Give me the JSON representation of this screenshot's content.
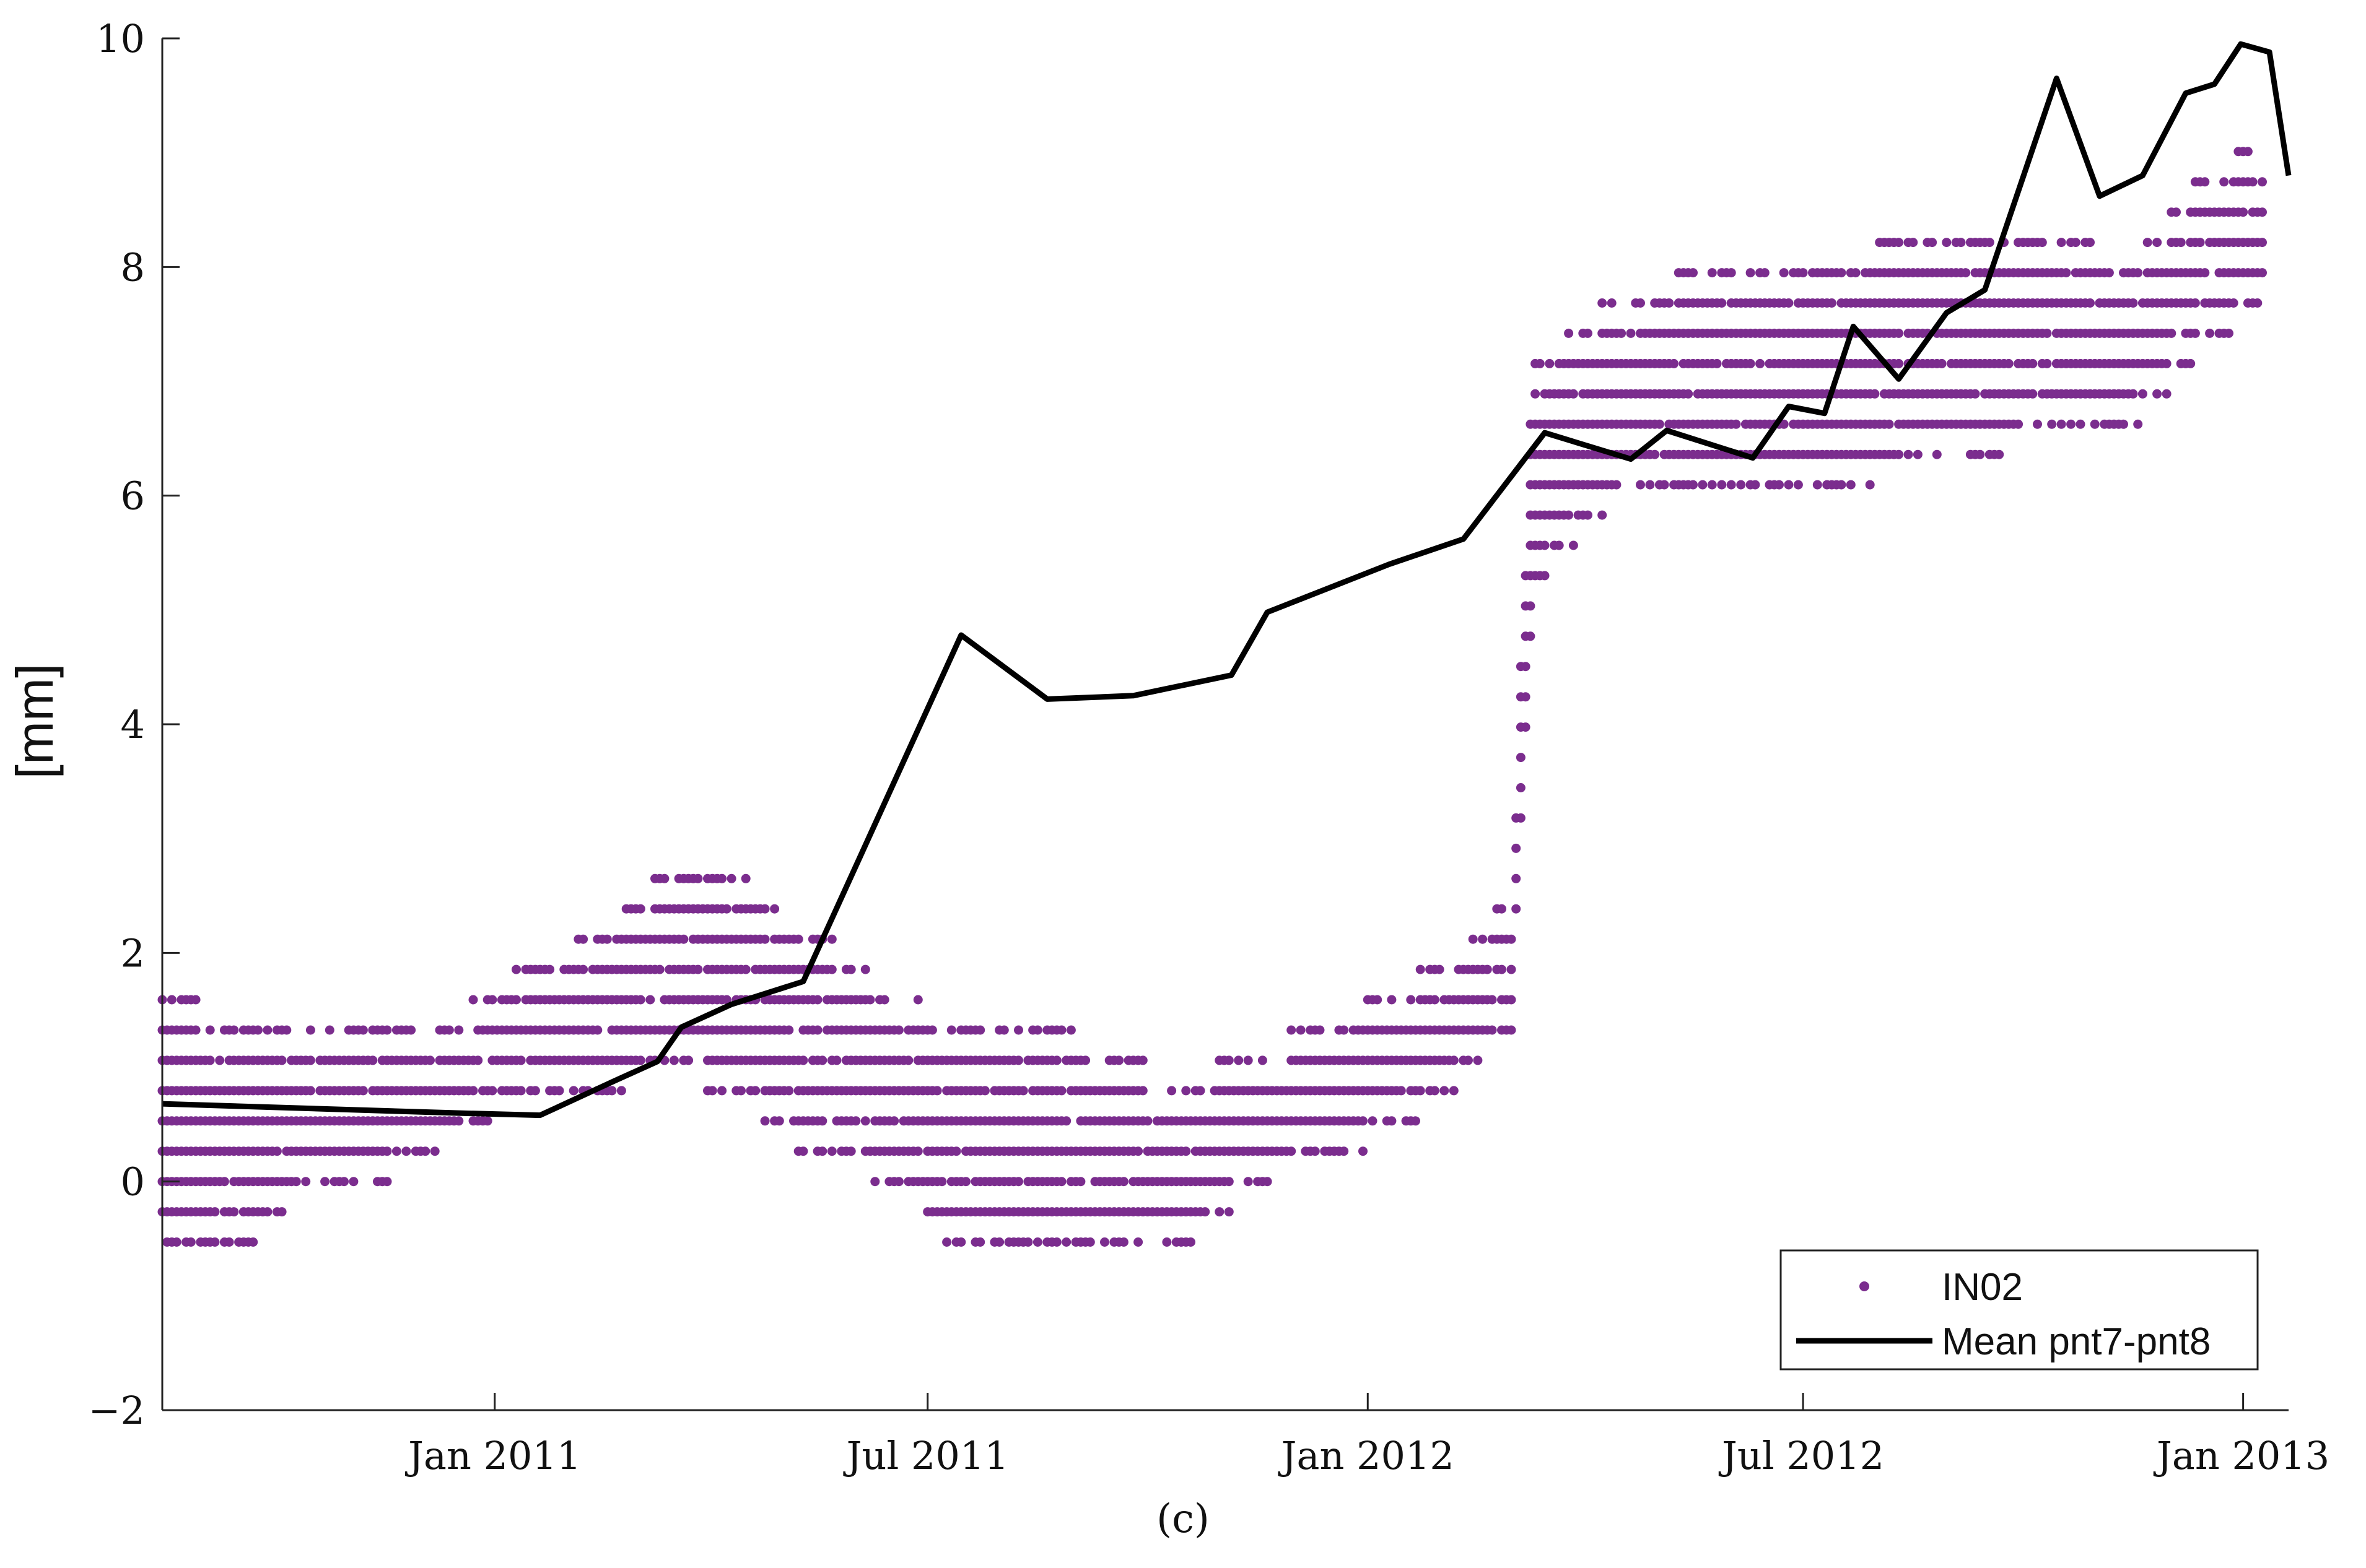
{
  "chart_data": {
    "type": "scatter",
    "title": "",
    "ylabel": "[mm]",
    "xlabel": "",
    "ylim": [
      -2,
      10
    ],
    "xlim": [
      "2010-08-15",
      "2013-01-20"
    ],
    "grid": false,
    "legend_position": "bottom-right",
    "y_ticks": [
      -2,
      0,
      2,
      4,
      6,
      8,
      10
    ],
    "x_ticks": [
      {
        "date": "2011-01-01",
        "label": "Jan 2011"
      },
      {
        "date": "2011-07-01",
        "label": "Jul 2011"
      },
      {
        "date": "2012-01-01",
        "label": "Jan 2012"
      },
      {
        "date": "2012-07-01",
        "label": "Jul 2012"
      },
      {
        "date": "2013-01-01",
        "label": "Jan 2013"
      }
    ],
    "series": [
      {
        "name": "IN02",
        "kind": "points",
        "color": "#7B2D8E",
        "quantization_mm": 0.265,
        "band_profile": [
          {
            "date": "2010-08-15",
            "min": -0.53,
            "max": 1.59
          },
          {
            "date": "2010-09-15",
            "min": -0.53,
            "max": 1.33
          },
          {
            "date": "2010-10-15",
            "min": 0.0,
            "max": 1.33
          },
          {
            "date": "2010-11-15",
            "min": 0.0,
            "max": 1.33
          },
          {
            "date": "2010-12-15",
            "min": 0.53,
            "max": 1.33
          },
          {
            "date": "2011-01-15",
            "min": 0.8,
            "max": 1.86
          },
          {
            "date": "2011-02-15",
            "min": 0.8,
            "max": 2.12
          },
          {
            "date": "2011-03-15",
            "min": 1.06,
            "max": 2.65
          },
          {
            "date": "2011-04-15",
            "min": 0.8,
            "max": 2.65
          },
          {
            "date": "2011-05-15",
            "min": 0.27,
            "max": 2.12
          },
          {
            "date": "2011-06-01",
            "min": 0.27,
            "max": 1.86
          },
          {
            "date": "2011-06-15",
            "min": 0.0,
            "max": 1.59
          },
          {
            "date": "2011-07-15",
            "min": -0.53,
            "max": 1.33
          },
          {
            "date": "2011-08-15",
            "min": -0.53,
            "max": 1.33
          },
          {
            "date": "2011-09-15",
            "min": -0.53,
            "max": 1.06
          },
          {
            "date": "2011-10-15",
            "min": -0.53,
            "max": 0.8
          },
          {
            "date": "2011-11-15",
            "min": 0.0,
            "max": 1.06
          },
          {
            "date": "2011-12-15",
            "min": 0.27,
            "max": 1.33
          },
          {
            "date": "2012-01-15",
            "min": 0.53,
            "max": 1.59
          },
          {
            "date": "2012-02-15",
            "min": 1.06,
            "max": 2.12
          },
          {
            "date": "2012-03-01",
            "min": 1.33,
            "max": 2.38
          },
          {
            "date": "2012-03-10",
            "min": 5.3,
            "max": 7.15
          },
          {
            "date": "2012-04-15",
            "min": 6.09,
            "max": 7.68
          },
          {
            "date": "2012-05-15",
            "min": 6.09,
            "max": 7.95
          },
          {
            "date": "2012-06-15",
            "min": 6.09,
            "max": 7.95
          },
          {
            "date": "2012-07-15",
            "min": 6.09,
            "max": 7.95
          },
          {
            "date": "2012-08-15",
            "min": 6.36,
            "max": 8.21
          },
          {
            "date": "2012-09-15",
            "min": 6.36,
            "max": 8.21
          },
          {
            "date": "2012-10-15",
            "min": 6.62,
            "max": 8.21
          },
          {
            "date": "2012-11-15",
            "min": 6.62,
            "max": 7.95
          },
          {
            "date": "2012-12-15",
            "min": 7.42,
            "max": 8.74
          },
          {
            "date": "2013-01-10",
            "min": 7.68,
            "max": 9.01
          }
        ]
      },
      {
        "name": "Mean pnt7-pnt8",
        "kind": "line",
        "color": "#000000",
        "points": [
          {
            "x": "2010-08-15",
            "y": 0.68
          },
          {
            "x": "2010-12-15",
            "y": 0.6
          },
          {
            "x": "2011-01-20",
            "y": 0.58
          },
          {
            "x": "2011-02-20",
            "y": 0.88
          },
          {
            "x": "2011-03-10",
            "y": 1.05
          },
          {
            "x": "2011-03-20",
            "y": 1.35
          },
          {
            "x": "2011-04-10",
            "y": 1.55
          },
          {
            "x": "2011-05-10",
            "y": 1.75
          },
          {
            "x": "2011-07-15",
            "y": 4.78
          },
          {
            "x": "2011-08-20",
            "y": 4.22
          },
          {
            "x": "2011-09-25",
            "y": 4.25
          },
          {
            "x": "2011-11-05",
            "y": 4.43
          },
          {
            "x": "2011-11-20",
            "y": 4.98
          },
          {
            "x": "2012-01-10",
            "y": 5.4
          },
          {
            "x": "2012-02-10",
            "y": 5.62
          },
          {
            "x": "2012-03-15",
            "y": 6.55
          },
          {
            "x": "2012-04-20",
            "y": 6.32
          },
          {
            "x": "2012-05-05",
            "y": 6.57
          },
          {
            "x": "2012-06-10",
            "y": 6.33
          },
          {
            "x": "2012-06-25",
            "y": 6.78
          },
          {
            "x": "2012-07-10",
            "y": 6.72
          },
          {
            "x": "2012-07-22",
            "y": 7.48
          },
          {
            "x": "2012-08-10",
            "y": 7.02
          },
          {
            "x": "2012-08-30",
            "y": 7.6
          },
          {
            "x": "2012-09-15",
            "y": 7.8
          },
          {
            "x": "2012-10-15",
            "y": 9.65
          },
          {
            "x": "2012-11-02",
            "y": 8.62
          },
          {
            "x": "2012-11-20",
            "y": 8.8
          },
          {
            "x": "2012-12-08",
            "y": 9.52
          },
          {
            "x": "2012-12-20",
            "y": 9.6
          },
          {
            "x": "2012-12-31",
            "y": 9.95
          },
          {
            "x": "2013-01-12",
            "y": 9.88
          },
          {
            "x": "2013-01-20",
            "y": 8.8
          }
        ]
      }
    ],
    "legend": [
      {
        "label": "IN02",
        "marker": "dot"
      },
      {
        "label": "Mean pnt7-pnt8",
        "marker": "line"
      }
    ],
    "caption": "(c)"
  }
}
